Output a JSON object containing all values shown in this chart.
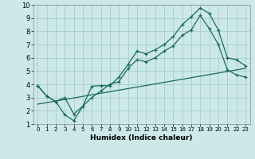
{
  "title": "",
  "xlabel": "Humidex (Indice chaleur)",
  "xlim": [
    -0.5,
    23.5
  ],
  "ylim": [
    1,
    10
  ],
  "xticks": [
    0,
    1,
    2,
    3,
    4,
    5,
    6,
    7,
    8,
    9,
    10,
    11,
    12,
    13,
    14,
    15,
    16,
    17,
    18,
    19,
    20,
    21,
    22,
    23
  ],
  "yticks": [
    1,
    2,
    3,
    4,
    5,
    6,
    7,
    8,
    9,
    10
  ],
  "bg_color": "#cce8e8",
  "grid_color": "#aacccc",
  "line_color": "#1a6b5e",
  "line1_x": [
    0,
    1,
    2,
    3,
    4,
    5,
    6,
    7,
    8,
    9,
    10,
    11,
    12,
    13,
    14,
    15,
    16,
    17,
    18,
    19,
    20,
    21,
    22,
    23
  ],
  "line1_y": [
    3.9,
    3.1,
    2.7,
    3.0,
    1.75,
    2.35,
    3.85,
    3.9,
    3.9,
    4.55,
    5.5,
    6.5,
    6.3,
    6.6,
    7.0,
    7.6,
    8.5,
    9.1,
    9.75,
    9.35,
    8.1,
    6.0,
    5.85,
    5.4
  ],
  "line2_x": [
    0,
    1,
    2,
    3,
    4,
    5,
    6,
    7,
    8,
    9,
    10,
    11,
    12,
    13,
    14,
    15,
    16,
    17,
    18,
    19,
    20,
    21,
    22,
    23
  ],
  "line2_y": [
    3.9,
    3.1,
    2.7,
    1.7,
    1.25,
    2.35,
    3.0,
    3.5,
    4.0,
    4.2,
    5.2,
    5.85,
    5.7,
    6.0,
    6.5,
    6.9,
    7.7,
    8.1,
    9.2,
    8.2,
    7.0,
    5.1,
    4.7,
    4.55
  ],
  "line3_x": [
    0,
    23
  ],
  "line3_y": [
    2.5,
    5.2
  ]
}
